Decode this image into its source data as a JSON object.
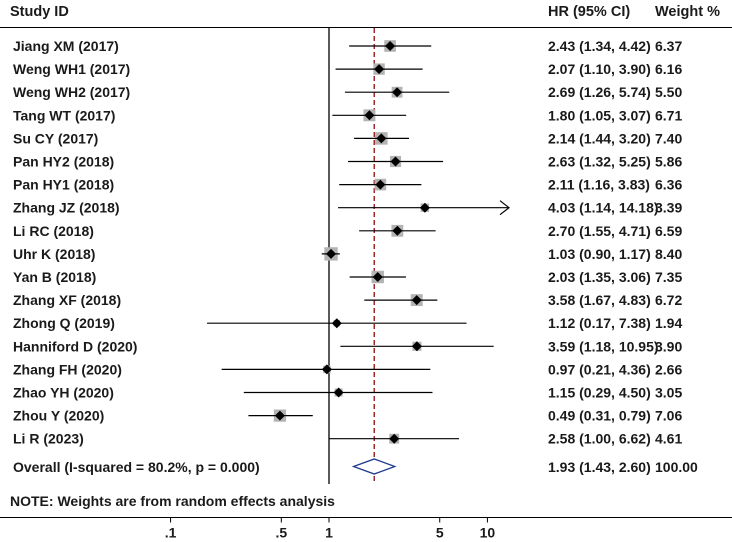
{
  "chart_data": {
    "type": "forest",
    "headers": {
      "study": "Study ID",
      "hr": "HR (95% CI)",
      "weight": "Weight %"
    },
    "x_scale": "log",
    "xlim": [
      0.0706,
      14.18
    ],
    "xticks": [
      {
        "value": 0.1,
        "label": ".1"
      },
      {
        "value": 0.5,
        "label": ".5"
      },
      {
        "value": 1,
        "label": "1"
      },
      {
        "value": 5,
        "label": "5"
      },
      {
        "value": 10,
        "label": "10"
      }
    ],
    "null_line": 1,
    "overall_line": 1.93,
    "studies": [
      {
        "label": "Jiang XM (2017)",
        "hr": 2.43,
        "lo": 1.34,
        "hi": 4.42,
        "weight": 6.37,
        "ci_text": "2.43 (1.34, 4.42)",
        "weight_text": "6.37"
      },
      {
        "label": "Weng WH1 (2017)",
        "hr": 2.07,
        "lo": 1.1,
        "hi": 3.9,
        "weight": 6.16,
        "ci_text": "2.07 (1.10, 3.90)",
        "weight_text": "6.16"
      },
      {
        "label": "Weng WH2 (2017)",
        "hr": 2.69,
        "lo": 1.26,
        "hi": 5.74,
        "weight": 5.5,
        "ci_text": "2.69 (1.26, 5.74)",
        "weight_text": "5.50"
      },
      {
        "label": "Tang WT (2017)",
        "hr": 1.8,
        "lo": 1.05,
        "hi": 3.07,
        "weight": 6.71,
        "ci_text": "1.80 (1.05, 3.07)",
        "weight_text": "6.71"
      },
      {
        "label": "Su CY (2017)",
        "hr": 2.14,
        "lo": 1.44,
        "hi": 3.2,
        "weight": 7.4,
        "ci_text": "2.14 (1.44, 3.20)",
        "weight_text": "7.40"
      },
      {
        "label": "Pan HY2 (2018)",
        "hr": 2.63,
        "lo": 1.32,
        "hi": 5.25,
        "weight": 5.86,
        "ci_text": "2.63 (1.32, 5.25)",
        "weight_text": "5.86"
      },
      {
        "label": "Pan HY1 (2018)",
        "hr": 2.11,
        "lo": 1.16,
        "hi": 3.83,
        "weight": 6.36,
        "ci_text": "2.11 (1.16, 3.83)",
        "weight_text": "6.36"
      },
      {
        "label": "Zhang JZ (2018)",
        "hr": 4.03,
        "lo": 1.14,
        "hi": 14.18,
        "weight": 3.39,
        "ci_text": "4.03 (1.14, 14.18)",
        "weight_text": "3.39",
        "arrow_right": true
      },
      {
        "label": "Li RC (2018)",
        "hr": 2.7,
        "lo": 1.55,
        "hi": 4.71,
        "weight": 6.59,
        "ci_text": "2.70 (1.55, 4.71)",
        "weight_text": "6.59"
      },
      {
        "label": "Uhr K (2018)",
        "hr": 1.03,
        "lo": 0.9,
        "hi": 1.17,
        "weight": 8.4,
        "ci_text": "1.03 (0.90, 1.17)",
        "weight_text": "8.40"
      },
      {
        "label": "Yan B (2018)",
        "hr": 2.03,
        "lo": 1.35,
        "hi": 3.06,
        "weight": 7.35,
        "ci_text": "2.03 (1.35, 3.06)",
        "weight_text": "7.35"
      },
      {
        "label": "Zhang XF (2018)",
        "hr": 3.58,
        "lo": 1.67,
        "hi": 4.83,
        "weight": 6.72,
        "ci_text": "3.58 (1.67, 4.83)",
        "weight_text": "6.72"
      },
      {
        "label": "Zhong Q (2019)",
        "hr": 1.12,
        "lo": 0.17,
        "hi": 7.38,
        "weight": 1.94,
        "ci_text": "1.12 (0.17, 7.38)",
        "weight_text": "1.94"
      },
      {
        "label": "Hanniford D (2020)",
        "hr": 3.59,
        "lo": 1.18,
        "hi": 10.95,
        "weight": 3.9,
        "ci_text": "3.59 (1.18, 10.95)",
        "weight_text": "3.90"
      },
      {
        "label": "Zhang FH (2020)",
        "hr": 0.97,
        "lo": 0.21,
        "hi": 4.36,
        "weight": 2.66,
        "ci_text": "0.97 (0.21, 4.36)",
        "weight_text": "2.66"
      },
      {
        "label": "Zhao YH (2020)",
        "hr": 1.15,
        "lo": 0.29,
        "hi": 4.5,
        "weight": 3.05,
        "ci_text": "1.15 (0.29, 4.50)",
        "weight_text": "3.05"
      },
      {
        "label": "Zhou Y (2020)",
        "hr": 0.49,
        "lo": 0.31,
        "hi": 0.79,
        "weight": 7.06,
        "ci_text": "0.49 (0.31, 0.79)",
        "weight_text": "7.06"
      },
      {
        "label": "Li R (2023)",
        "hr": 2.58,
        "lo": 1.0,
        "hi": 6.62,
        "weight": 4.61,
        "ci_text": "2.58 (1.00, 6.62)",
        "weight_text": "4.61"
      }
    ],
    "overall": {
      "label": "Overall  (I-squared = 80.2%, p = 0.000)",
      "hr": 1.93,
      "lo": 1.43,
      "hi": 2.6,
      "weight": 100.0,
      "ci_text": "1.93 (1.43, 2.60)",
      "weight_text": "100.00"
    },
    "note": "NOTE: Weights are from random effects analysis",
    "colors": {
      "text": "#1a1a1a",
      "weight_box": "#b3b3b3",
      "point": "#000000",
      "diamond": "#1f3b8c",
      "overall_line": "#9b1c1c",
      "axis": "#000000"
    }
  }
}
